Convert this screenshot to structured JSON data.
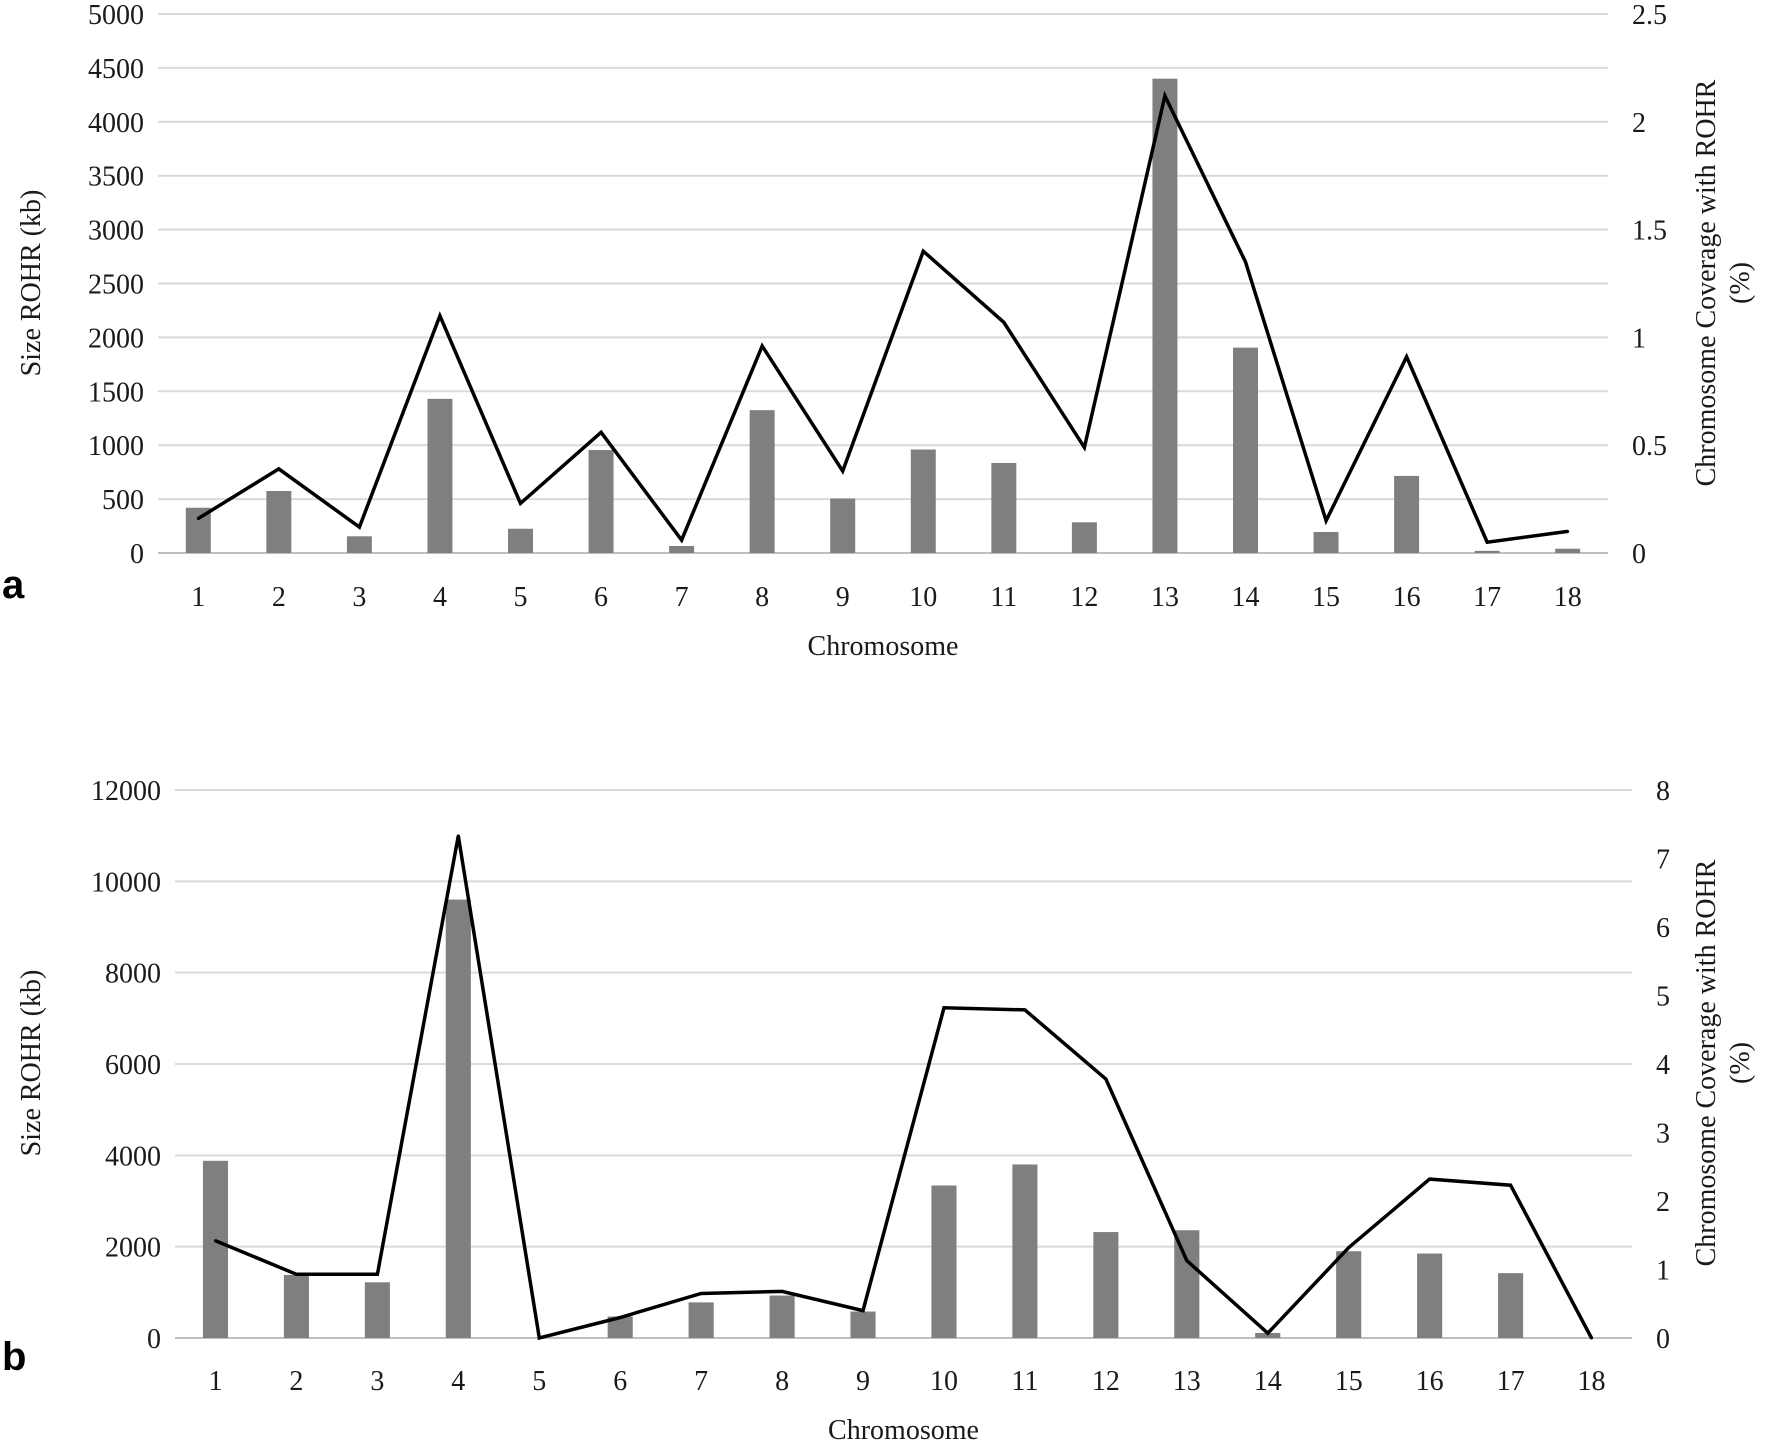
{
  "colors": {
    "bar": "#7f7f7f",
    "line": "#000000",
    "grid": "#d9d9d9"
  },
  "chart_data": [
    {
      "type": "bar",
      "panel_label": "a",
      "categories": [
        "1",
        "2",
        "3",
        "4",
        "5",
        "6",
        "7",
        "8",
        "9",
        "10",
        "11",
        "12",
        "13",
        "14",
        "15",
        "16",
        "17",
        "18"
      ],
      "xlabel": "Chromosome",
      "ylabel": "Size ROHR (kb)",
      "y2label_line1": "Chromosome Coverage with ROHR",
      "y2label_line2": "(%)",
      "ylim": [
        0,
        5000
      ],
      "y2lim": [
        0,
        2.5
      ],
      "yticks": [
        "0",
        "500",
        "1000",
        "1500",
        "2000",
        "2500",
        "3000",
        "3500",
        "4000",
        "4500",
        "5000"
      ],
      "y2ticks": [
        "0",
        "0.5",
        "1",
        "1.5",
        "2",
        "2.5"
      ],
      "grid": true,
      "series": [
        {
          "kind": "bar",
          "axis": "left",
          "values": [
            420,
            575,
            155,
            1430,
            225,
            955,
            65,
            1325,
            505,
            960,
            835,
            285,
            4400,
            1905,
            195,
            715,
            20,
            40
          ]
        },
        {
          "kind": "line",
          "axis": "right",
          "values": [
            0.16,
            0.39,
            0.12,
            1.1,
            0.23,
            0.56,
            0.06,
            0.96,
            0.38,
            1.4,
            1.07,
            0.49,
            2.12,
            1.35,
            0.15,
            0.91,
            0.05,
            0.1
          ]
        }
      ]
    },
    {
      "type": "bar",
      "panel_label": "b",
      "categories": [
        "1",
        "2",
        "3",
        "4",
        "5",
        "6",
        "7",
        "8",
        "9",
        "10",
        "11",
        "12",
        "13",
        "14",
        "15",
        "16",
        "17",
        "18"
      ],
      "xlabel": "Chromosome",
      "ylabel": "Size ROHR (kb)",
      "y2label_line1": "Chromosome Coverage with ROHR",
      "y2label_line2": "(%)",
      "ylim": [
        0,
        12000
      ],
      "y2lim": [
        0,
        8
      ],
      "yticks": [
        "0",
        "2000",
        "4000",
        "6000",
        "8000",
        "10000",
        "12000"
      ],
      "y2ticks": [
        "0",
        "1",
        "2",
        "3",
        "4",
        "5",
        "6",
        "7",
        "8"
      ],
      "grid": true,
      "series": [
        {
          "kind": "bar",
          "axis": "left",
          "values": [
            3880,
            1380,
            1220,
            9600,
            0,
            470,
            780,
            930,
            580,
            3340,
            3800,
            2320,
            2360,
            110,
            1900,
            1850,
            1420,
            0
          ]
        },
        {
          "kind": "line",
          "axis": "right",
          "values": [
            1.42,
            0.93,
            0.93,
            7.33,
            0.0,
            0.3,
            0.65,
            0.68,
            0.4,
            4.82,
            4.79,
            3.78,
            1.13,
            0.07,
            1.32,
            2.32,
            2.23,
            0.0
          ]
        }
      ]
    }
  ]
}
